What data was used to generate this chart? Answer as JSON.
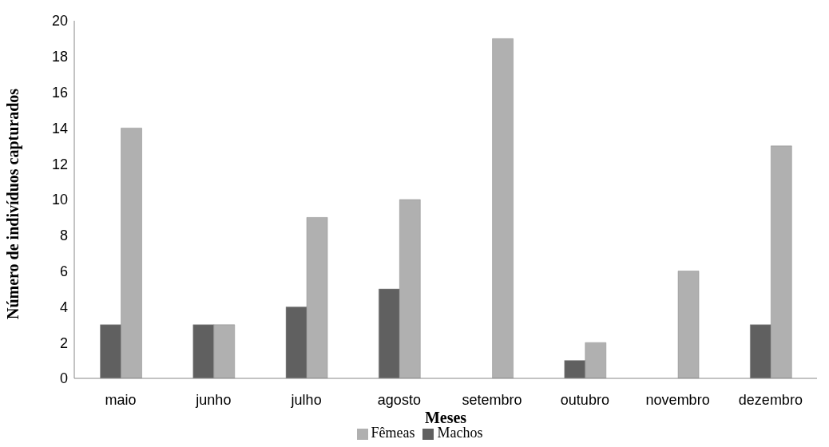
{
  "chart_data": {
    "type": "bar",
    "xlabel": "Meses",
    "ylabel": "Número de indivíduos capturados",
    "categories": [
      "maio",
      "junho",
      "julho",
      "agosto",
      "setembro",
      "outubro",
      "novembro",
      "dezembro"
    ],
    "series": [
      {
        "name": "Machos",
        "color": "#606060",
        "values": [
          3,
          3,
          4,
          5,
          0,
          1,
          0,
          3
        ]
      },
      {
        "name": "Fêmeas",
        "color": "#b0b0b0",
        "values": [
          14,
          3,
          9,
          10,
          19,
          2,
          6,
          13
        ]
      }
    ],
    "ylim": [
      0,
      20
    ],
    "yticks": [
      0,
      2,
      4,
      6,
      8,
      10,
      12,
      14,
      16,
      18,
      20
    ],
    "grid": false,
    "legend": "bottom"
  }
}
